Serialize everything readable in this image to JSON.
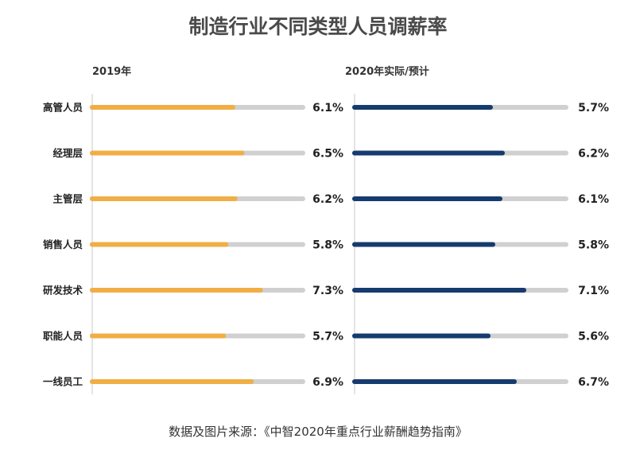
{
  "chart_data": {
    "type": "bar",
    "title": "制造行业不同类型人员调薪率",
    "categories": [
      "高管人员",
      "经理层",
      "主管层",
      "销售人员",
      "研发技术",
      "职能人员",
      "一线员工"
    ],
    "series": [
      {
        "name": "2019年",
        "values": [
          6.1,
          6.5,
          6.2,
          5.8,
          7.3,
          5.7,
          6.9
        ],
        "labels": [
          "6.1%",
          "6.5%",
          "6.2%",
          "5.8%",
          "7.3%",
          "5.7%",
          "6.9%"
        ],
        "color": "#F0AE45"
      },
      {
        "name": "2020年实际/预计",
        "values": [
          5.7,
          6.2,
          6.1,
          5.8,
          7.1,
          5.6,
          6.7
        ],
        "labels": [
          "5.7%",
          "6.2%",
          "6.1%",
          "5.8%",
          "7.1%",
          "5.6%",
          "6.7%"
        ],
        "color": "#163B6E"
      }
    ],
    "track_color": "#D0D0D0",
    "xlim": [
      0,
      10
    ],
    "grid": false,
    "source": "数据及图片来源：《中智2020年重点行业薪酬趋势指南》"
  }
}
